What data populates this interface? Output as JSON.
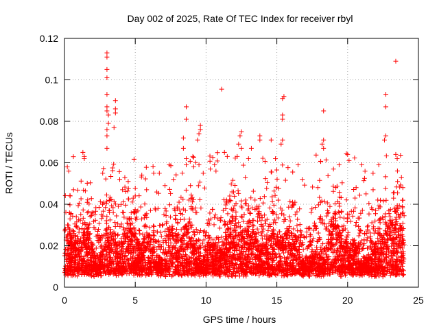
{
  "chart_data": {
    "type": "scatter",
    "title": "Day 002 of 2025, Rate Of TEC Index for receiver rbyl",
    "xlabel": "GPS time / hours",
    "ylabel": "ROTI / TECUs",
    "xlim": [
      0,
      25
    ],
    "ylim": [
      0,
      0.12
    ],
    "xticks": [
      0,
      5,
      10,
      15,
      20,
      25
    ],
    "xtick_labels": [
      "0",
      "5",
      "10",
      "15",
      "20",
      "25"
    ],
    "yticks": [
      0,
      0.02,
      0.04,
      0.06,
      0.08,
      0.1,
      0.12
    ],
    "ytick_labels": [
      "0",
      "0.02",
      "0.04",
      "0.06",
      "0.08",
      "0.1",
      "0.12"
    ],
    "grid": true,
    "marker": "plus",
    "color": "#ff0000",
    "series": [
      {
        "name": "ROTI",
        "x_range": [
          0,
          24
        ],
        "points": [
          [
            3.0,
            0.113
          ],
          [
            3.0,
            0.111
          ],
          [
            3.0,
            0.105
          ],
          [
            3.0,
            0.101
          ],
          [
            3.0,
            0.093
          ],
          [
            3.0,
            0.087
          ],
          [
            3.0,
            0.085
          ],
          [
            3.1,
            0.083
          ],
          [
            3.1,
            0.079
          ],
          [
            3.0,
            0.076
          ],
          [
            3.0,
            0.073
          ],
          [
            3.0,
            0.067
          ],
          [
            3.6,
            0.09
          ],
          [
            3.6,
            0.086
          ],
          [
            3.6,
            0.084
          ],
          [
            3.5,
            0.077
          ],
          [
            23.4,
            0.109
          ],
          [
            22.7,
            0.093
          ],
          [
            22.7,
            0.087
          ],
          [
            22.7,
            0.073
          ],
          [
            22.6,
            0.071
          ],
          [
            23.4,
            0.064
          ],
          [
            23.5,
            0.062
          ],
          [
            11.1,
            0.0955
          ],
          [
            15.5,
            0.092
          ],
          [
            15.4,
            0.091
          ],
          [
            15.4,
            0.083
          ],
          [
            15.4,
            0.081
          ],
          [
            15.4,
            0.071
          ],
          [
            15.3,
            0.069
          ],
          [
            18.3,
            0.085
          ],
          [
            18.3,
            0.071
          ],
          [
            18.2,
            0.069
          ],
          [
            18.3,
            0.067
          ],
          [
            8.6,
            0.087
          ],
          [
            8.6,
            0.081
          ],
          [
            8.4,
            0.072
          ],
          [
            8.4,
            0.067
          ],
          [
            8.6,
            0.062
          ],
          [
            8.6,
            0.059
          ],
          [
            9.6,
            0.078
          ],
          [
            9.6,
            0.076
          ],
          [
            9.5,
            0.074
          ],
          [
            9.4,
            0.071
          ],
          [
            9.5,
            0.059
          ],
          [
            12.5,
            0.075
          ],
          [
            12.4,
            0.073
          ],
          [
            12.3,
            0.069
          ],
          [
            12.5,
            0.067
          ],
          [
            12.2,
            0.063
          ],
          [
            13.8,
            0.073
          ],
          [
            13.8,
            0.071
          ],
          [
            14.6,
            0.071
          ],
          [
            13.2,
            0.067
          ],
          [
            13.0,
            0.062
          ],
          [
            1.3,
            0.065
          ],
          [
            1.4,
            0.063
          ],
          [
            1.4,
            0.062
          ],
          [
            0.2,
            0.058
          ],
          [
            0.3,
            0.056
          ],
          [
            2.7,
            0.055
          ],
          [
            3.9,
            0.052
          ],
          [
            4.5,
            0.051
          ],
          [
            4.1,
            0.047
          ],
          [
            16.5,
            0.059
          ],
          [
            17.9,
            0.048
          ],
          [
            19.4,
            0.059
          ],
          [
            19.0,
            0.057
          ],
          [
            20.0,
            0.064
          ],
          [
            20.1,
            0.061
          ],
          [
            21.0,
            0.059
          ],
          [
            21.8,
            0.047
          ],
          [
            22.2,
            0.059
          ],
          [
            20.6,
            0.048
          ],
          [
            10.6,
            0.059
          ],
          [
            10.3,
            0.057
          ],
          [
            10.7,
            0.056
          ],
          [
            11.3,
            0.065
          ],
          [
            11.5,
            0.063
          ],
          [
            6.7,
            0.055
          ],
          [
            7.1,
            0.049
          ],
          [
            5.0,
            0.044
          ],
          [
            5.8,
            0.047
          ],
          [
            6.3,
            0.055
          ],
          [
            7.4,
            0.059
          ],
          [
            7.7,
            0.052
          ],
          [
            8.9,
            0.049
          ],
          [
            9.8,
            0.055
          ],
          [
            14.9,
            0.062
          ],
          [
            23.8,
            0.053
          ],
          [
            23.9,
            0.048
          ],
          [
            0.4,
            0.044
          ],
          [
            21.3,
            0.045
          ],
          [
            16.8,
            0.052
          ]
        ],
        "dense_band": {
          "description": "continuous dense cloud of points across the full day",
          "y_typical": [
            0.005,
            0.03
          ],
          "y_min": 0.004
        }
      }
    ]
  }
}
